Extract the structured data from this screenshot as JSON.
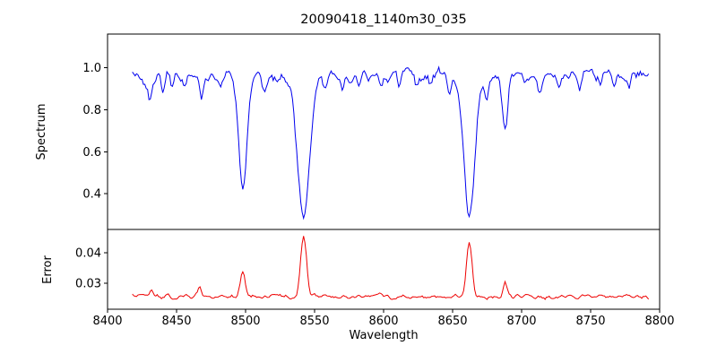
{
  "figure": {
    "title": "20090418_1140m30_035"
  },
  "chart_data": {
    "type": "line",
    "title": "20090418_1140m30_035",
    "xlabel": "Wavelength",
    "xlim": [
      8400,
      8800
    ],
    "xticks": [
      8400,
      8450,
      8500,
      8550,
      8600,
      8650,
      8700,
      8750,
      8800
    ],
    "xtick_labels": [
      "8400",
      "8450",
      "8500",
      "8550",
      "8600",
      "8650",
      "8700",
      "8750",
      "8800"
    ],
    "x_start": 8418,
    "x_end": 8792,
    "x_step": 1,
    "grid": false,
    "legend": "none",
    "panels": [
      {
        "name": "spectrum",
        "ylabel": "Spectrum",
        "line_color": "#0000ee",
        "ylim": [
          0.23,
          1.16
        ],
        "yticks": [
          0.4,
          0.6,
          0.8,
          1.0
        ],
        "ytick_labels": [
          "0.4",
          "0.6",
          "0.8",
          "1.0"
        ],
        "continuum": 0.965,
        "noise_amplitude": 0.022,
        "absorption_lines": [
          {
            "center": 8498.0,
            "depth_to": 0.44,
            "sigma": 3.0
          },
          {
            "center": 8542.1,
            "depth_to": 0.3,
            "sigma": 4.5
          },
          {
            "center": 8662.1,
            "depth_to": 0.3,
            "sigma": 4.0
          },
          {
            "center": 8688.0,
            "depth_to": 0.72,
            "sigma": 2.0
          }
        ],
        "minor_lines": [
          {
            "center": 8427,
            "depth_to": 0.9,
            "sigma": 1.2
          },
          {
            "center": 8431,
            "depth_to": 0.85,
            "sigma": 1.5
          },
          {
            "center": 8440,
            "depth_to": 0.89,
            "sigma": 1.2
          },
          {
            "center": 8447,
            "depth_to": 0.91,
            "sigma": 1.0
          },
          {
            "center": 8456,
            "depth_to": 0.9,
            "sigma": 1.2
          },
          {
            "center": 8468,
            "depth_to": 0.86,
            "sigma": 1.5
          },
          {
            "center": 8482,
            "depth_to": 0.91,
            "sigma": 1.0
          },
          {
            "center": 8514,
            "depth_to": 0.88,
            "sigma": 1.5
          },
          {
            "center": 8523,
            "depth_to": 0.91,
            "sigma": 1.2
          },
          {
            "center": 8557,
            "depth_to": 0.91,
            "sigma": 1.2
          },
          {
            "center": 8570,
            "depth_to": 0.92,
            "sigma": 1.0
          },
          {
            "center": 8582,
            "depth_to": 0.89,
            "sigma": 1.4
          },
          {
            "center": 8598,
            "depth_to": 0.88,
            "sigma": 1.5
          },
          {
            "center": 8611,
            "depth_to": 0.92,
            "sigma": 1.0
          },
          {
            "center": 8624,
            "depth_to": 0.91,
            "sigma": 1.2
          },
          {
            "center": 8634,
            "depth_to": 0.92,
            "sigma": 1.0
          },
          {
            "center": 8648,
            "depth_to": 0.88,
            "sigma": 1.5
          },
          {
            "center": 8675,
            "depth_to": 0.86,
            "sigma": 1.6
          },
          {
            "center": 8702,
            "depth_to": 0.92,
            "sigma": 1.0
          },
          {
            "center": 8713,
            "depth_to": 0.88,
            "sigma": 1.5
          },
          {
            "center": 8727,
            "depth_to": 0.92,
            "sigma": 1.0
          },
          {
            "center": 8742,
            "depth_to": 0.9,
            "sigma": 1.3
          },
          {
            "center": 8757,
            "depth_to": 0.92,
            "sigma": 1.0
          },
          {
            "center": 8767,
            "depth_to": 0.9,
            "sigma": 1.3
          },
          {
            "center": 8778,
            "depth_to": 0.93,
            "sigma": 1.0
          }
        ]
      },
      {
        "name": "error",
        "ylabel": "Error",
        "line_color": "#ee0000",
        "ylim": [
          0.0215,
          0.0477
        ],
        "yticks": [
          0.03,
          0.04
        ],
        "ytick_labels": [
          "0.03",
          "0.04"
        ],
        "baseline": 0.0256,
        "noise_amplitude": 0.0006,
        "peaks": [
          {
            "center": 8498.0,
            "peak_to": 0.0335,
            "sigma": 1.8
          },
          {
            "center": 8542.1,
            "peak_to": 0.0452,
            "sigma": 2.2
          },
          {
            "center": 8662.1,
            "peak_to": 0.0432,
            "sigma": 2.0
          },
          {
            "center": 8688.0,
            "peak_to": 0.03,
            "sigma": 1.5
          },
          {
            "center": 8467.0,
            "peak_to": 0.0285,
            "sigma": 1.2
          },
          {
            "center": 8432.0,
            "peak_to": 0.0275,
            "sigma": 1.2
          },
          {
            "center": 8598.0,
            "peak_to": 0.0272,
            "sigma": 1.2
          }
        ]
      }
    ]
  }
}
